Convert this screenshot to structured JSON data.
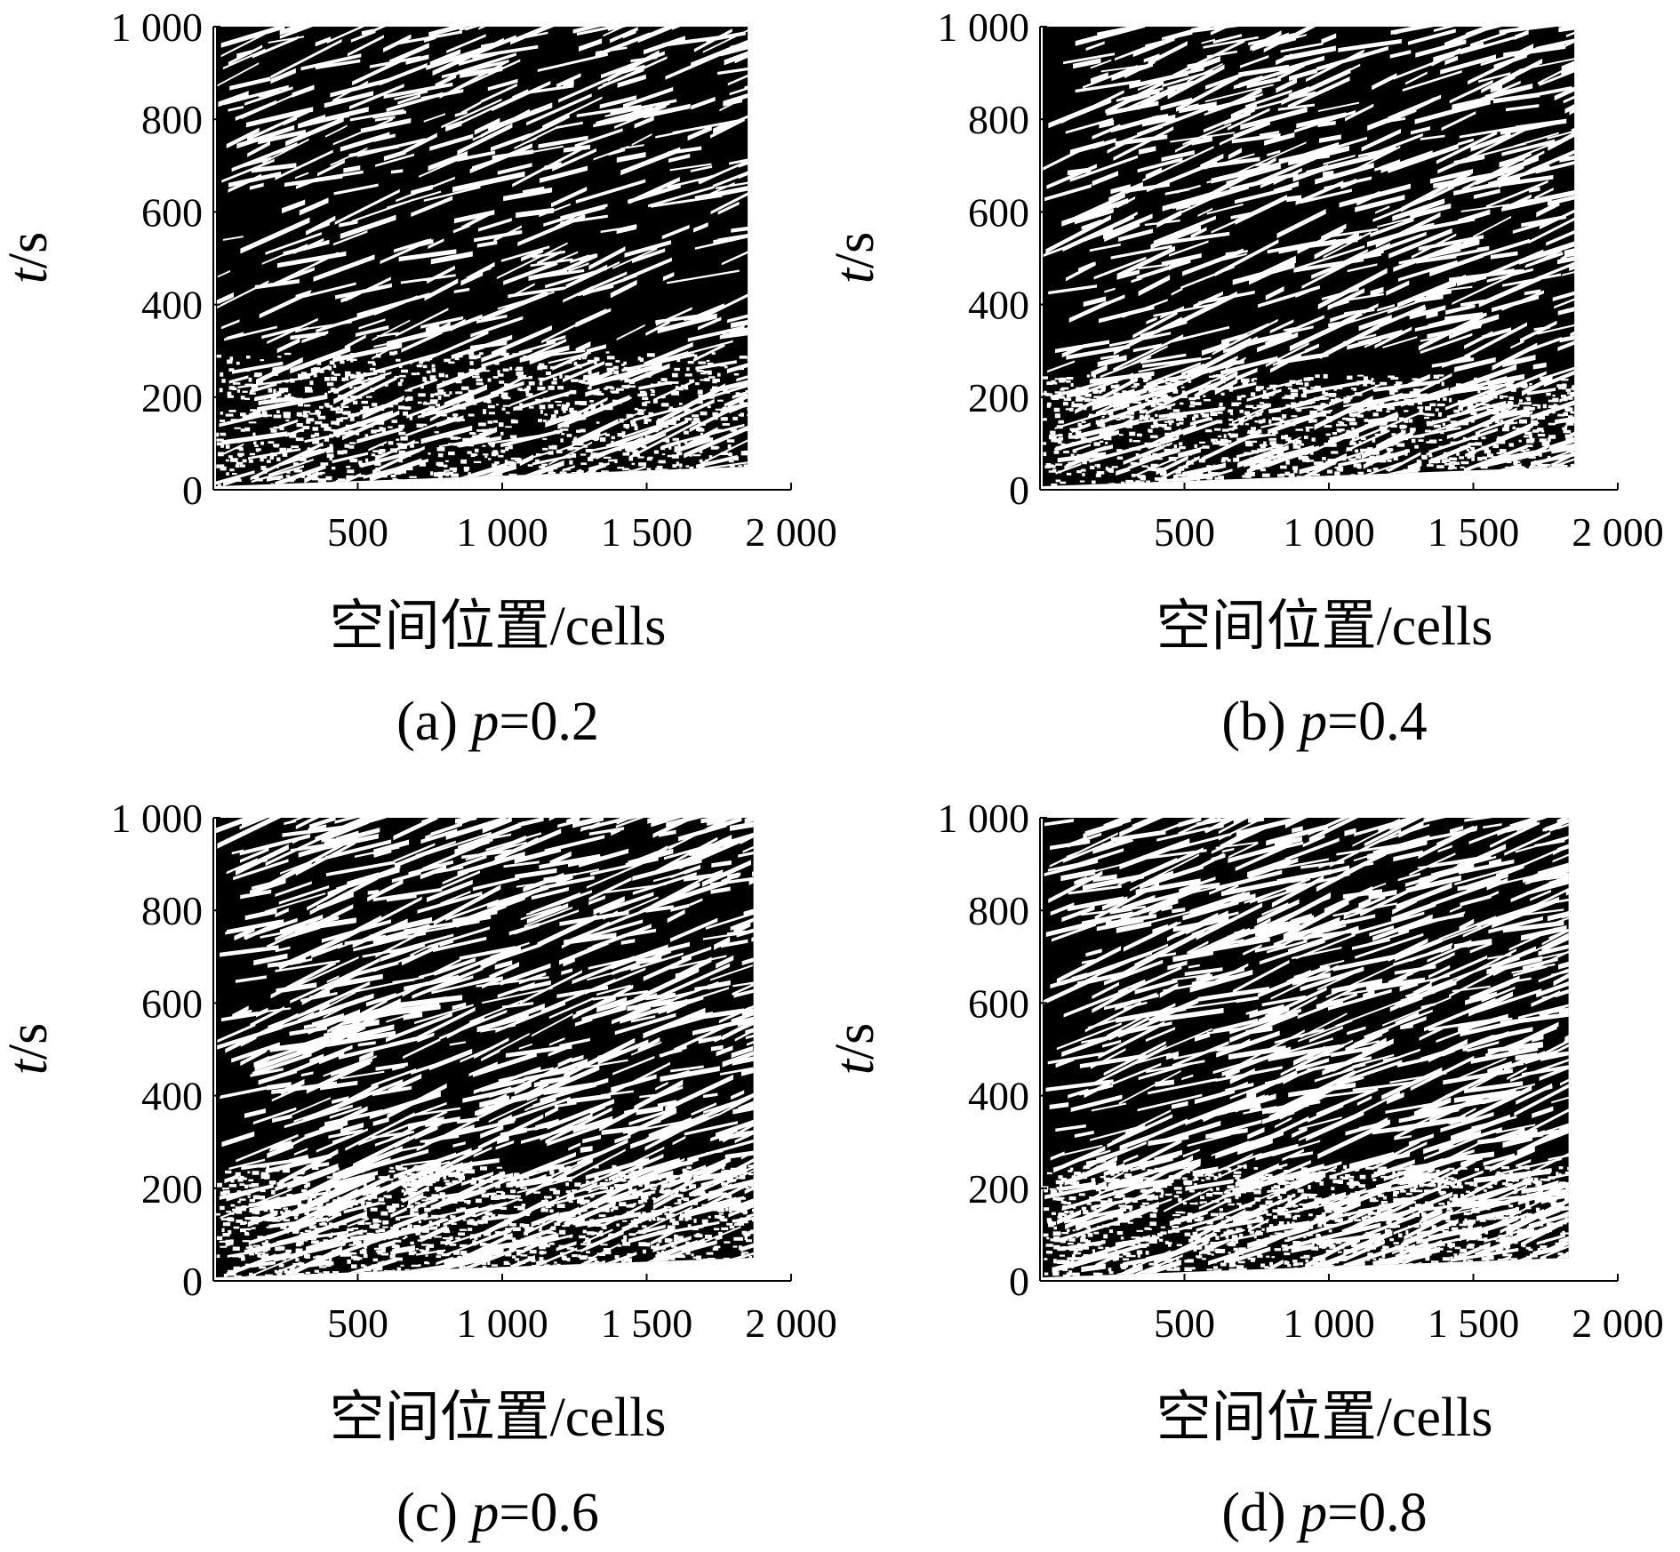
{
  "chart_data": [
    {
      "type": "heatmap",
      "caption_prefix": "(a) ",
      "caption_var": "p",
      "caption_value": "=0.2",
      "p": 0.2,
      "xlabel": "空间位置/cells",
      "ylabel_var": "t",
      "ylabel_unit": "/s",
      "xlim": [
        0,
        2000
      ],
      "ylim": [
        0,
        1000
      ],
      "xticks": [
        500,
        1000,
        1500,
        2000
      ],
      "xtick_labels": [
        "500",
        "1 000",
        "1 500",
        "2 000"
      ],
      "yticks": [
        0,
        200,
        400,
        600,
        800,
        1000
      ],
      "ytick_labels": [
        "0",
        "200",
        "400",
        "600",
        "800",
        "1 000"
      ],
      "x_data_range": [
        0,
        1850
      ],
      "black_fraction": 0.8,
      "colors": {
        "occupied": "#000000",
        "empty": "#ffffff"
      }
    },
    {
      "type": "heatmap",
      "caption_prefix": "(b) ",
      "caption_var": "p",
      "caption_value": "=0.4",
      "p": 0.4,
      "xlabel": "空间位置/cells",
      "ylabel_var": "t",
      "ylabel_unit": "/s",
      "xlim": [
        0,
        2000
      ],
      "ylim": [
        0,
        1000
      ],
      "xticks": [
        500,
        1000,
        1500,
        2000
      ],
      "xtick_labels": [
        "500",
        "1 000",
        "1 500",
        "2 000"
      ],
      "yticks": [
        0,
        200,
        400,
        600,
        800,
        1000
      ],
      "ytick_labels": [
        "0",
        "200",
        "400",
        "600",
        "800",
        "1 000"
      ],
      "x_data_range": [
        0,
        1850
      ],
      "black_fraction": 0.7,
      "colors": {
        "occupied": "#000000",
        "empty": "#ffffff"
      }
    },
    {
      "type": "heatmap",
      "caption_prefix": "(c) ",
      "caption_var": "p",
      "caption_value": "=0.6",
      "p": 0.6,
      "xlabel": "空间位置/cells",
      "ylabel_var": "t",
      "ylabel_unit": "/s",
      "xlim": [
        0,
        2000
      ],
      "ylim": [
        0,
        1000
      ],
      "xticks": [
        500,
        1000,
        1500,
        2000
      ],
      "xtick_labels": [
        "500",
        "1 000",
        "1 500",
        "2 000"
      ],
      "yticks": [
        0,
        200,
        400,
        600,
        800,
        1000
      ],
      "ytick_labels": [
        "0",
        "200",
        "400",
        "600",
        "800",
        "1 000"
      ],
      "x_data_range": [
        0,
        1870
      ],
      "black_fraction": 0.6,
      "colors": {
        "occupied": "#000000",
        "empty": "#ffffff"
      }
    },
    {
      "type": "heatmap",
      "caption_prefix": "(d) ",
      "caption_var": "p",
      "caption_value": "=0.8",
      "p": 0.8,
      "xlabel": "空间位置/cells",
      "ylabel_var": "t",
      "ylabel_unit": "/s",
      "xlim": [
        0,
        2000
      ],
      "ylim": [
        0,
        1000
      ],
      "xticks": [
        500,
        1000,
        1500,
        2000
      ],
      "xtick_labels": [
        "500",
        "1 000",
        "1 500",
        "2 000"
      ],
      "yticks": [
        0,
        200,
        400,
        600,
        800,
        1000
      ],
      "ytick_labels": [
        "0",
        "200",
        "400",
        "600",
        "800",
        "1 000"
      ],
      "x_data_range": [
        0,
        1830
      ],
      "black_fraction": 0.55,
      "colors": {
        "occupied": "#000000",
        "empty": "#ffffff"
      }
    }
  ]
}
